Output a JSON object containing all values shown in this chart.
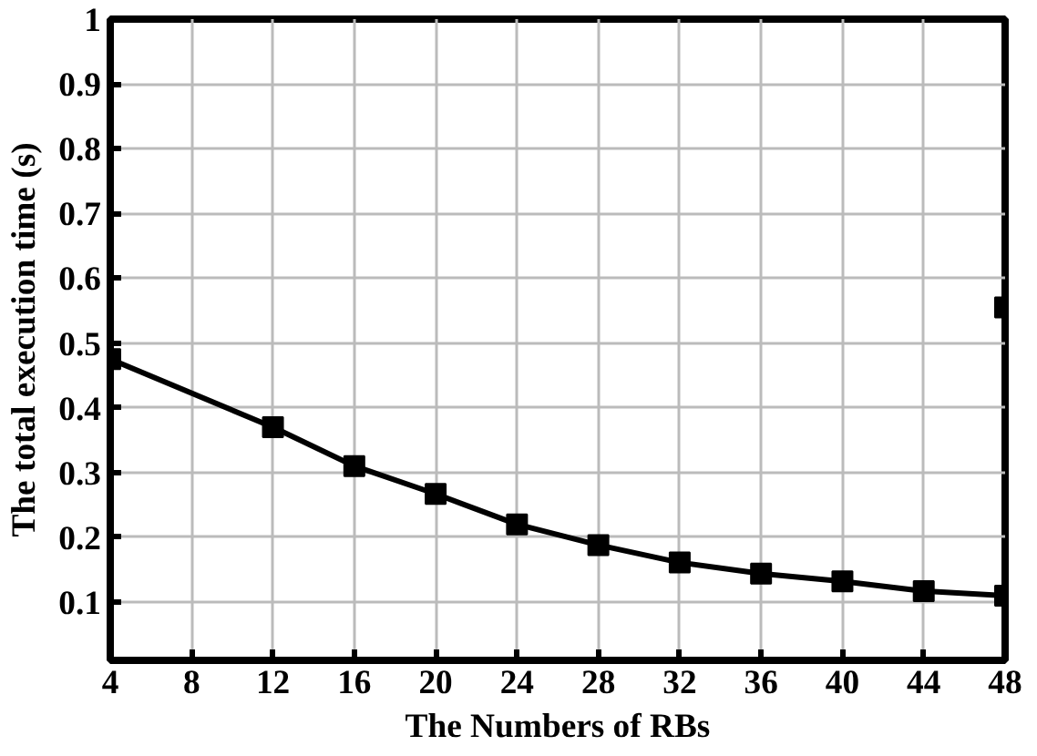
{
  "chart_data": {
    "type": "line",
    "xlabel": "The Numbers of RBs",
    "ylabel": "The total execution time (s)",
    "xlim": [
      4,
      48
    ],
    "xticks": [
      4,
      8,
      12,
      16,
      20,
      24,
      28,
      32,
      36,
      40,
      44,
      48
    ],
    "ylim": [
      0.01,
      1
    ],
    "yticks": [
      0.1,
      0.2,
      0.3,
      0.4,
      0.5,
      0.6,
      0.7,
      0.8,
      0.9,
      1
    ],
    "grid": true,
    "marker": "square",
    "line_style": "solid",
    "series": [
      {
        "color": "#000000",
        "x": [
          4,
          12,
          16,
          20,
          24,
          28,
          32,
          36,
          40,
          44,
          48
        ],
        "values": [
          0.475,
          0.37,
          0.31,
          0.267,
          0.22,
          0.188,
          0.161,
          0.144,
          0.132,
          0.117,
          0.11
        ]
      },
      {
        "type": "scatter",
        "color": "#000000",
        "x": [
          48
        ],
        "values": [
          0.555
        ]
      }
    ]
  }
}
